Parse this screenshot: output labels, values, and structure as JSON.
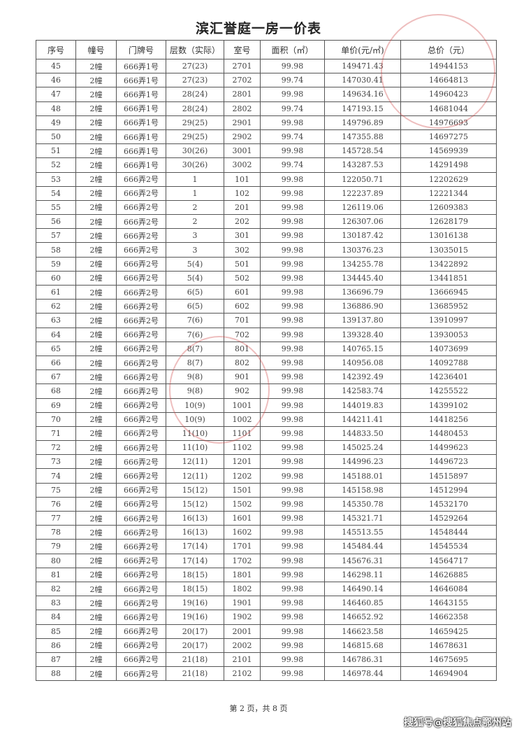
{
  "title": "滨汇誉庭一房一价表",
  "columns": [
    "序号",
    "幢号",
    "门牌号",
    "层数（实际）",
    "室号",
    "面积（㎡）",
    "单价(元/㎡)",
    "总价（元）"
  ],
  "rows": [
    [
      "45",
      "2幢",
      "666弄1号",
      "27(23)",
      "2701",
      "99.98",
      "149471.43",
      "14944153"
    ],
    [
      "46",
      "2幢",
      "666弄1号",
      "27(23)",
      "2702",
      "99.74",
      "147030.41",
      "14664813"
    ],
    [
      "47",
      "2幢",
      "666弄1号",
      "28(24)",
      "2801",
      "99.98",
      "149634.16",
      "14960423"
    ],
    [
      "48",
      "2幢",
      "666弄1号",
      "28(24)",
      "2802",
      "99.74",
      "147193.15",
      "14681044"
    ],
    [
      "49",
      "2幢",
      "666弄1号",
      "29(25)",
      "2901",
      "99.98",
      "149796.89",
      "14976693"
    ],
    [
      "50",
      "2幢",
      "666弄1号",
      "29(25)",
      "2902",
      "99.74",
      "147355.88",
      "14697275"
    ],
    [
      "51",
      "2幢",
      "666弄1号",
      "30(26)",
      "3001",
      "99.98",
      "145728.54",
      "14569939"
    ],
    [
      "52",
      "2幢",
      "666弄1号",
      "30(26)",
      "3002",
      "99.74",
      "143287.53",
      "14291498"
    ],
    [
      "53",
      "2幢",
      "666弄2号",
      "1",
      "101",
      "99.98",
      "122050.71",
      "12202629"
    ],
    [
      "54",
      "2幢",
      "666弄2号",
      "1",
      "102",
      "99.98",
      "122237.89",
      "12221344"
    ],
    [
      "55",
      "2幢",
      "666弄2号",
      "2",
      "201",
      "99.98",
      "126119.06",
      "12609383"
    ],
    [
      "56",
      "2幢",
      "666弄2号",
      "2",
      "202",
      "99.98",
      "126307.06",
      "12628179"
    ],
    [
      "57",
      "2幢",
      "666弄2号",
      "3",
      "301",
      "99.98",
      "130187.42",
      "13016138"
    ],
    [
      "58",
      "2幢",
      "666弄2号",
      "3",
      "302",
      "99.98",
      "130376.23",
      "13035015"
    ],
    [
      "59",
      "2幢",
      "666弄2号",
      "5(4)",
      "501",
      "99.98",
      "134255.78",
      "13422892"
    ],
    [
      "60",
      "2幢",
      "666弄2号",
      "5(4)",
      "502",
      "99.98",
      "134445.40",
      "13441851"
    ],
    [
      "61",
      "2幢",
      "666弄2号",
      "6(5)",
      "601",
      "99.98",
      "136696.79",
      "13666945"
    ],
    [
      "62",
      "2幢",
      "666弄2号",
      "6(5)",
      "602",
      "99.98",
      "136886.90",
      "13685952"
    ],
    [
      "63",
      "2幢",
      "666弄2号",
      "7(6)",
      "701",
      "99.98",
      "139137.80",
      "13910997"
    ],
    [
      "64",
      "2幢",
      "666弄2号",
      "7(6)",
      "702",
      "99.98",
      "139328.40",
      "13930053"
    ],
    [
      "65",
      "2幢",
      "666弄2号",
      "8(7)",
      "801",
      "99.98",
      "140765.15",
      "14073699"
    ],
    [
      "66",
      "2幢",
      "666弄2号",
      "8(7)",
      "802",
      "99.98",
      "140956.08",
      "14092788"
    ],
    [
      "67",
      "2幢",
      "666弄2号",
      "9(8)",
      "901",
      "99.98",
      "142392.49",
      "14236401"
    ],
    [
      "68",
      "2幢",
      "666弄2号",
      "9(8)",
      "902",
      "99.98",
      "142583.74",
      "14255522"
    ],
    [
      "69",
      "2幢",
      "666弄2号",
      "10(9)",
      "1001",
      "99.98",
      "144019.83",
      "14399102"
    ],
    [
      "70",
      "2幢",
      "666弄2号",
      "10(9)",
      "1002",
      "99.98",
      "144211.41",
      "14418256"
    ],
    [
      "71",
      "2幢",
      "666弄2号",
      "11(10)",
      "1101",
      "99.98",
      "144833.50",
      "14480453"
    ],
    [
      "72",
      "2幢",
      "666弄2号",
      "11(10)",
      "1102",
      "99.98",
      "145025.24",
      "14499623"
    ],
    [
      "73",
      "2幢",
      "666弄2号",
      "12(11)",
      "1201",
      "99.98",
      "144996.23",
      "14496723"
    ],
    [
      "74",
      "2幢",
      "666弄2号",
      "12(11)",
      "1202",
      "99.98",
      "145188.01",
      "14515897"
    ],
    [
      "75",
      "2幢",
      "666弄2号",
      "15(12)",
      "1501",
      "99.98",
      "145158.98",
      "14512994"
    ],
    [
      "76",
      "2幢",
      "666弄2号",
      "15(12)",
      "1502",
      "99.98",
      "145350.78",
      "14532170"
    ],
    [
      "77",
      "2幢",
      "666弄2号",
      "16(13)",
      "1601",
      "99.98",
      "145321.71",
      "14529264"
    ],
    [
      "78",
      "2幢",
      "666弄2号",
      "16(13)",
      "1602",
      "99.98",
      "145513.55",
      "14548444"
    ],
    [
      "79",
      "2幢",
      "666弄2号",
      "17(14)",
      "1701",
      "99.98",
      "145484.44",
      "14545534"
    ],
    [
      "80",
      "2幢",
      "666弄2号",
      "17(14)",
      "1702",
      "99.98",
      "145676.31",
      "14564717"
    ],
    [
      "81",
      "2幢",
      "666弄2号",
      "18(15)",
      "1801",
      "99.98",
      "146298.11",
      "14626885"
    ],
    [
      "82",
      "2幢",
      "666弄2号",
      "18(15)",
      "1802",
      "99.98",
      "146490.14",
      "14646084"
    ],
    [
      "83",
      "2幢",
      "666弄2号",
      "19(16)",
      "1901",
      "99.98",
      "146460.85",
      "14643155"
    ],
    [
      "84",
      "2幢",
      "666弄2号",
      "19(16)",
      "1902",
      "99.98",
      "146652.92",
      "14662358"
    ],
    [
      "85",
      "2幢",
      "666弄2号",
      "20(17)",
      "2001",
      "99.98",
      "146623.58",
      "14659425"
    ],
    [
      "86",
      "2幢",
      "666弄2号",
      "20(17)",
      "2002",
      "99.98",
      "146815.68",
      "14678631"
    ],
    [
      "87",
      "2幢",
      "666弄2号",
      "21(18)",
      "2101",
      "99.98",
      "146786.31",
      "14675695"
    ],
    [
      "88",
      "2幢",
      "666弄2号",
      "21(18)",
      "2102",
      "99.98",
      "146978.44",
      "14694904"
    ]
  ],
  "footer": "第 2 页，共 8 页",
  "watermark": "搜狐号@搜狐焦点鄂州站",
  "stamp_color": "#cd4646"
}
